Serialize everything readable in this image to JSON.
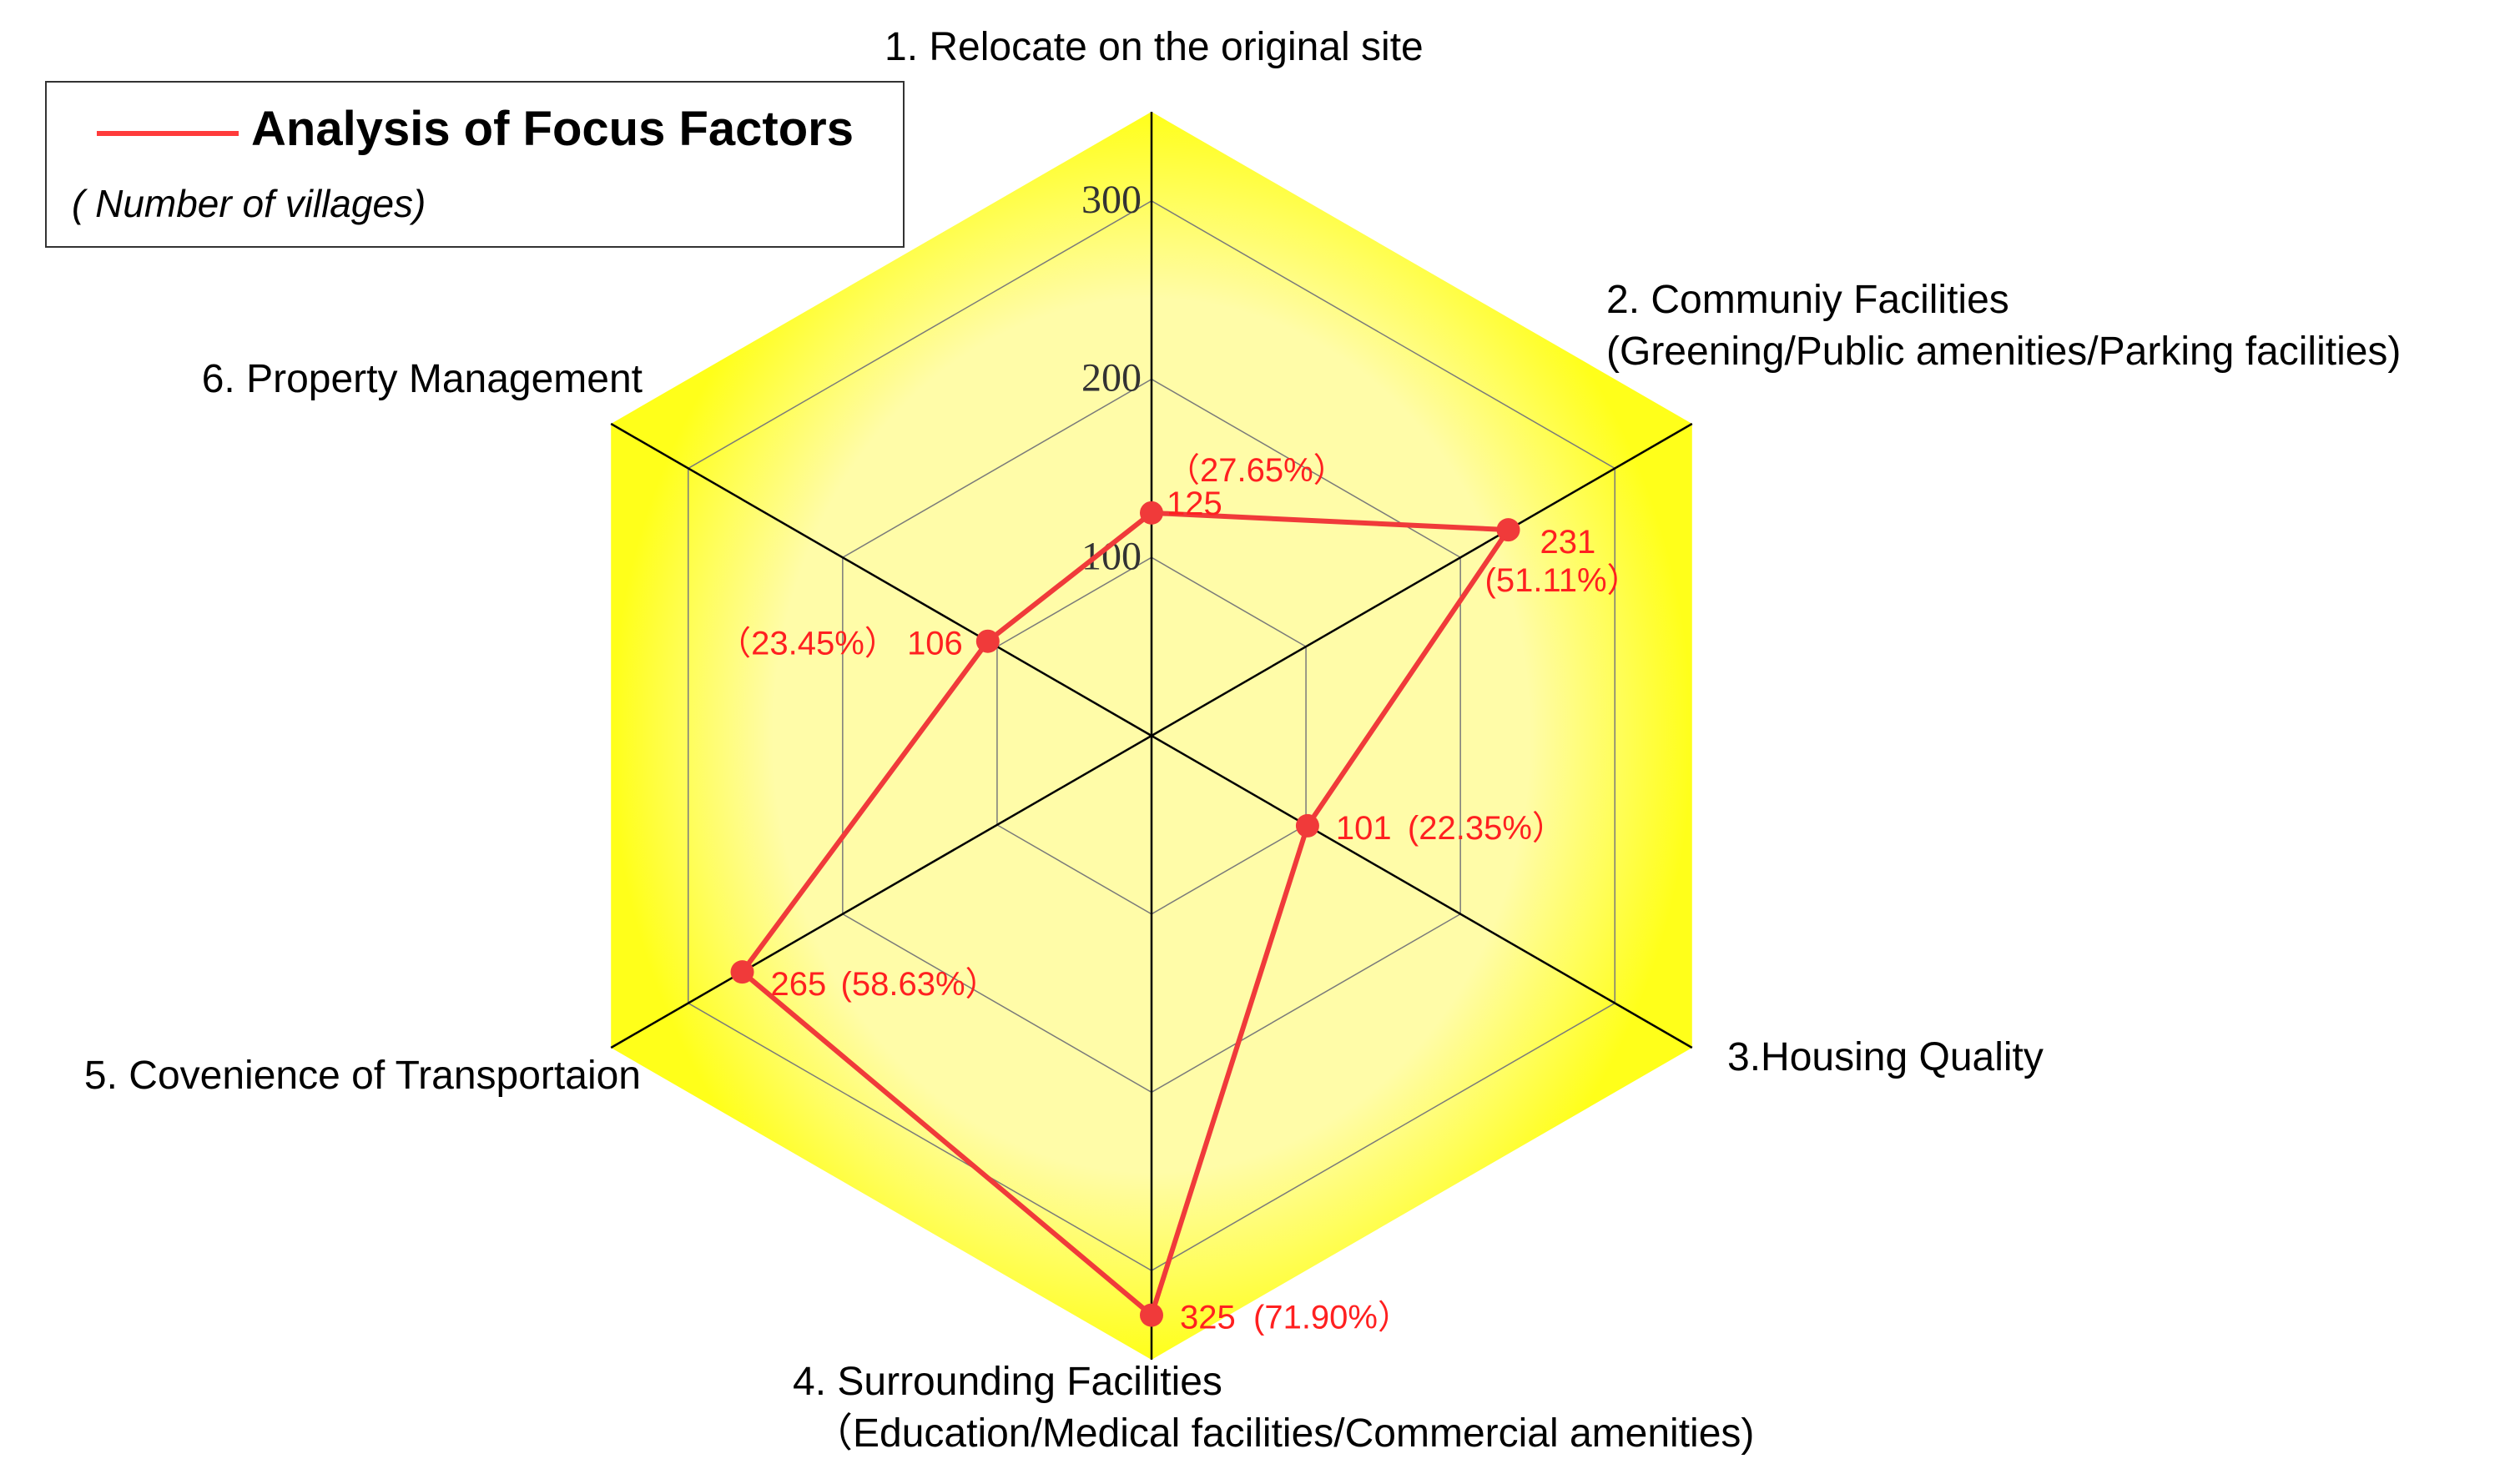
{
  "colors": {
    "fill_light": "#fffca8",
    "fill_edge": "#ffff1a",
    "series": "#f03a3a",
    "label": "#ff2020",
    "grid": "#7a7a7a"
  },
  "legend": {
    "title": "Analysis of Focus Factors",
    "subtitle": "( Number of villages)"
  },
  "chart_data": {
    "type": "radar",
    "axes": [
      {
        "lines": [
          "1. Relocate on the original site"
        ]
      },
      {
        "lines": [
          "2. Communiy Facilities",
          "(Greening/Public amenities/Parking facilities)"
        ]
      },
      {
        "lines": [
          "3.Housing Quality"
        ]
      },
      {
        "lines": [
          "4. Surrounding Facilities",
          "（Education/Medical facilities/Commercial amenities)"
        ]
      },
      {
        "lines": [
          "5. Covenience of Transportaion"
        ]
      },
      {
        "lines": [
          "6. Property Management"
        ]
      }
    ],
    "ticks": [
      100,
      200,
      300
    ],
    "range": [
      0,
      350
    ],
    "series": [
      {
        "name": "Analysis of Focus Factors",
        "values": [
          125,
          231,
          101,
          325,
          265,
          106
        ],
        "percents": [
          "（27.65%）",
          "(51.11%）",
          "(22.35%）",
          "(71.90%）",
          "(58.63%）",
          "（23.45%）"
        ]
      }
    ]
  }
}
